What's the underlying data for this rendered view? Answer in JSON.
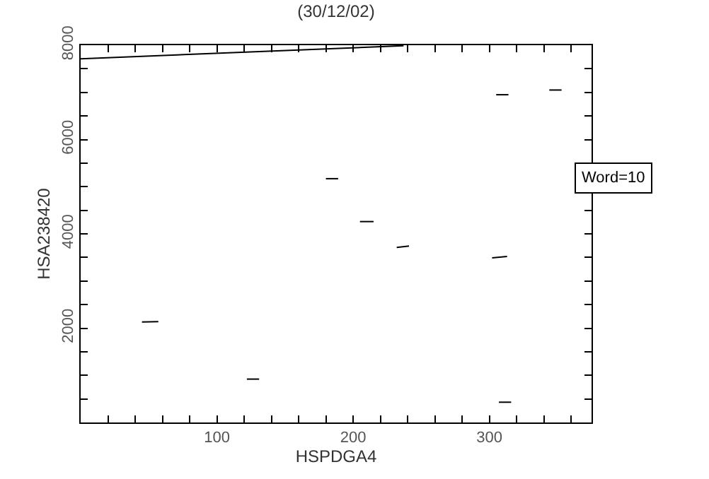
{
  "chart_data": {
    "type": "line",
    "title": "(30/12/02)",
    "xlabel": "HSPDGA4",
    "ylabel": "HSA238420",
    "annotations": [
      "Word=10"
    ],
    "xlim": [
      0,
      375
    ],
    "ylim": [
      0,
      8000
    ],
    "xticks": [
      {
        "value": 20,
        "label": null
      },
      {
        "value": 40,
        "label": null
      },
      {
        "value": 60,
        "label": null
      },
      {
        "value": 80,
        "label": null
      },
      100,
      {
        "value": 120,
        "label": null
      },
      {
        "value": 140,
        "label": null
      },
      {
        "value": 160,
        "label": null
      },
      {
        "value": 180,
        "label": null
      },
      200,
      {
        "value": 220,
        "label": null
      },
      {
        "value": 240,
        "label": null
      },
      {
        "value": 260,
        "label": null
      },
      {
        "value": 280,
        "label": null
      },
      300,
      {
        "value": 320,
        "label": null
      },
      {
        "value": 340,
        "label": null
      },
      {
        "value": 360,
        "label": null
      }
    ],
    "yticks": [
      {
        "value": 500,
        "label": null
      },
      {
        "value": 1000,
        "label": null
      },
      {
        "value": 1500,
        "label": null
      },
      2000,
      {
        "value": 2500,
        "label": null
      },
      {
        "value": 3000,
        "label": null
      },
      {
        "value": 3500,
        "label": null
      },
      4000,
      {
        "value": 4500,
        "label": null
      },
      {
        "value": 5000,
        "label": null
      },
      {
        "value": 5500,
        "label": null
      },
      6000,
      {
        "value": 6500,
        "label": null
      },
      {
        "value": 7000,
        "label": null
      },
      {
        "value": 7500,
        "label": null
      },
      8000
    ],
    "marker": "none",
    "line_style": "solid",
    "series": [
      {
        "color": "#000000",
        "x": [
          0,
          237
        ],
        "values": [
          7710,
          7990
        ]
      },
      {
        "color": "#000000",
        "x": [
          305,
          314
        ],
        "values": [
          6950,
          6950
        ]
      },
      {
        "color": "#000000",
        "x": [
          344,
          353
        ],
        "values": [
          7050,
          7050
        ]
      },
      {
        "color": "#000000",
        "x": [
          180,
          189
        ],
        "values": [
          5170,
          5170
        ]
      },
      {
        "color": "#000000",
        "x": [
          205,
          215
        ],
        "values": [
          4260,
          4260
        ]
      },
      {
        "color": "#000000",
        "x": [
          232,
          241
        ],
        "values": [
          3710,
          3740
        ]
      },
      {
        "color": "#000000",
        "x": [
          302,
          313
        ],
        "values": [
          3490,
          3520
        ]
      },
      {
        "color": "#000000",
        "x": [
          45,
          57
        ],
        "values": [
          2130,
          2140
        ]
      },
      {
        "color": "#000000",
        "x": [
          122,
          131
        ],
        "values": [
          920,
          920
        ]
      },
      {
        "color": "#000000",
        "x": [
          307,
          316
        ],
        "values": [
          430,
          430
        ]
      }
    ]
  }
}
